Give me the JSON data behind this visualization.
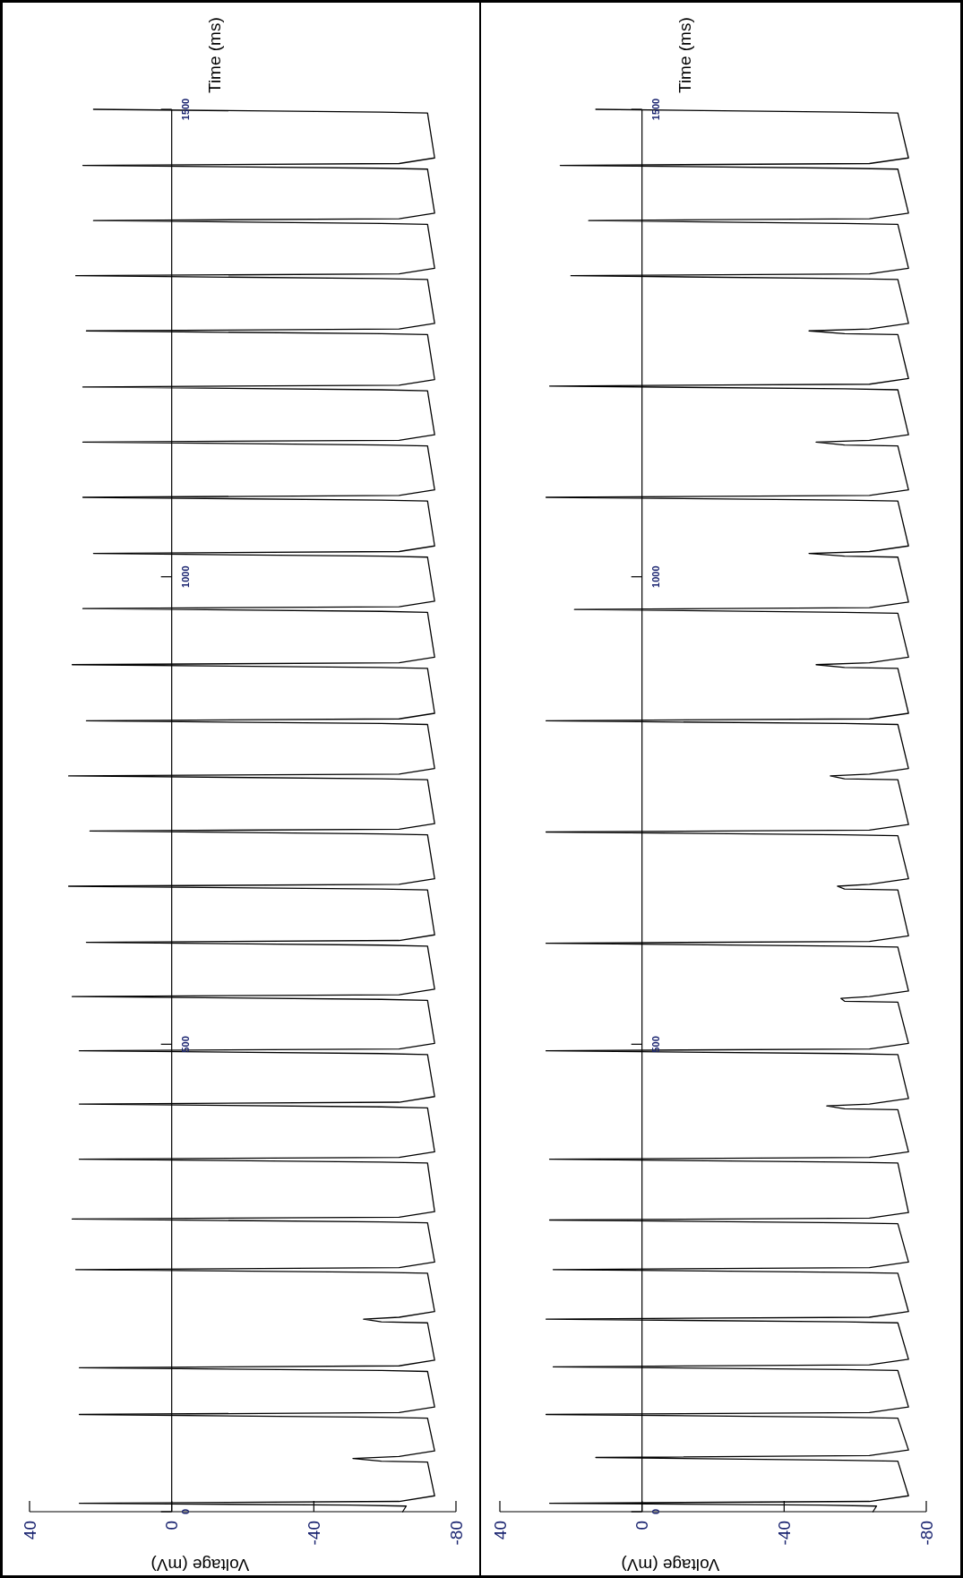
{
  "chart_data": [
    {
      "type": "line",
      "xlabel": "Voltage (mV)",
      "ylabel": "Time (ms)",
      "xlim": [
        40,
        -80
      ],
      "xticks": [
        40,
        0,
        -40,
        -80
      ],
      "ylim": [
        0,
        1500
      ],
      "yticks": [
        0,
        500,
        1000,
        1500
      ],
      "series": [
        {
          "color": "#000000",
          "values": [
            0,
            6,
            7,
            9,
            11,
            17,
            53,
            54,
            57,
            59,
            65,
            100,
            101,
            104,
            106,
            112,
            150,
            151,
            154,
            156,
            162,
            202,
            203,
            206,
            208,
            214,
            255,
            256,
            259,
            261,
            267,
            309,
            310,
            313,
            315,
            321,
            373,
            374,
            377,
            379,
            385,
            432,
            433,
            436,
            438,
            444,
            489,
            490,
            493,
            495,
            501,
            547,
            548,
            551,
            553,
            559,
            605,
            606,
            609,
            611,
            617,
            665,
            666,
            669,
            671,
            677,
            724,
            725,
            728,
            730,
            736,
            783,
            784,
            787,
            789,
            795,
            842,
            843,
            846,
            848,
            854,
            902,
            903,
            906,
            908,
            914,
            962,
            963,
            966,
            968,
            974,
            1021,
            1022,
            1025,
            1027,
            1033,
            1081,
            1082,
            1085,
            1087,
            1093,
            1140,
            1141,
            1144,
            1146,
            1152,
            1199,
            1200,
            1203,
            1205,
            1211,
            1259,
            1260,
            1263,
            1265,
            1271,
            1318,
            1319,
            1322,
            1324,
            1330,
            1377,
            1378,
            1381,
            1383,
            1389,
            1436,
            1437,
            1440,
            1442,
            1448,
            1496,
            1497,
            1500
          ],
          "x": [
            -65,
            -66,
            -50,
            26,
            -64,
            -74,
            -72,
            -59,
            -51,
            -64,
            -74,
            -72,
            -59,
            26,
            -64,
            -74,
            -72,
            -59,
            26,
            -64,
            -74,
            -72,
            -59,
            -54,
            -64,
            -74,
            -72,
            -59,
            27,
            -64,
            -74,
            -72,
            -59,
            28,
            -64,
            -74,
            -72,
            -59,
            26,
            -64,
            -74,
            -72,
            -59,
            26,
            -64,
            -74,
            -72,
            -59,
            26,
            -64,
            -74,
            -72,
            -59,
            28,
            -64,
            -74,
            -72,
            -59,
            24,
            -64,
            -74,
            -72,
            -59,
            29,
            -64,
            -74,
            -72,
            -59,
            23,
            -64,
            -74,
            -72,
            -59,
            29,
            -64,
            -74,
            -72,
            -59,
            24,
            -64,
            -74,
            -72,
            -59,
            28,
            -64,
            -74,
            -72,
            -59,
            25,
            -64,
            -74,
            -72,
            -59,
            22,
            -64,
            -74,
            -72,
            -59,
            25,
            -64,
            -74,
            -72,
            -59,
            25,
            -64,
            -74,
            -72,
            -59,
            25,
            -64,
            -74,
            -72,
            -59,
            24,
            -64,
            -74,
            -72,
            -59,
            27,
            -64,
            -74,
            -72,
            -59,
            22,
            -64,
            -74,
            -72,
            -59,
            25,
            -64,
            -74,
            -72,
            -59,
            22
          ]
        }
      ]
    },
    {
      "type": "line",
      "xlabel": "Voltage (mV)",
      "ylabel": "Time (ms)",
      "xlim": [
        40,
        -80
      ],
      "xticks": [
        40,
        0,
        -40,
        -80
      ],
      "ylim": [
        0,
        1500
      ],
      "yticks": [
        0,
        500,
        1000,
        1500
      ],
      "series": [
        {
          "color": "#000000",
          "values": [
            0,
            6,
            7,
            9,
            11,
            17,
            54,
            55,
            58,
            60,
            66,
            100,
            101,
            104,
            106,
            112,
            151,
            152,
            155,
            157,
            163,
            202,
            203,
            206,
            208,
            214,
            255,
            256,
            259,
            261,
            267,
            308,
            309,
            312,
            314,
            320,
            373,
            374,
            377,
            379,
            385,
            430,
            431,
            434,
            436,
            442,
            489,
            490,
            493,
            495,
            501,
            545,
            546,
            549,
            551,
            557,
            604,
            605,
            608,
            610,
            616,
            665,
            666,
            669,
            671,
            677,
            723,
            724,
            727,
            729,
            735,
            783,
            784,
            787,
            789,
            795,
            842,
            843,
            846,
            848,
            854,
            902,
            903,
            906,
            908,
            914,
            961,
            962,
            965,
            967,
            973,
            1021,
            1022,
            1025,
            1027,
            1033,
            1081,
            1082,
            1085,
            1087,
            1093,
            1140,
            1141,
            1144,
            1146,
            1152,
            1200,
            1201,
            1204,
            1206,
            1212,
            1259,
            1260,
            1263,
            1265,
            1271,
            1318,
            1319,
            1322,
            1324,
            1330,
            1377,
            1378,
            1381,
            1383,
            1389,
            1436,
            1437,
            1440,
            1442,
            1448,
            1496,
            1497,
            1500
          ],
          "x": [
            -65,
            -66,
            -50,
            26,
            -64,
            -75,
            -72,
            -57,
            13,
            -64,
            -75,
            -72,
            -57,
            27,
            -64,
            -75,
            -72,
            -57,
            25,
            -64,
            -75,
            -72,
            -57,
            27,
            -64,
            -75,
            -72,
            -57,
            25,
            -64,
            -75,
            -72,
            -57,
            26,
            -64,
            -75,
            -72,
            -57,
            26,
            -64,
            -75,
            -72,
            -57,
            -52,
            -64,
            -75,
            -72,
            -57,
            27,
            -64,
            -75,
            -72,
            -57,
            -56,
            -64,
            -75,
            -72,
            -57,
            27,
            -64,
            -75,
            -72,
            -57,
            -55,
            -64,
            -75,
            -72,
            -57,
            27,
            -64,
            -75,
            -72,
            -57,
            -53,
            -64,
            -75,
            -72,
            -57,
            27,
            -64,
            -75,
            -72,
            -57,
            -49,
            -64,
            -75,
            -72,
            -57,
            19,
            -64,
            -75,
            -72,
            -57,
            -47,
            -64,
            -75,
            -72,
            -57,
            27,
            -64,
            -75,
            -72,
            -57,
            -49,
            -64,
            -75,
            -72,
            -57,
            26,
            -64,
            -75,
            -72,
            -57,
            -47,
            -64,
            -75,
            -72,
            -57,
            20,
            -64,
            -75,
            -72,
            -57,
            15,
            -64,
            -75,
            -72,
            -57,
            23,
            -64,
            -75,
            -72,
            -57,
            13
          ]
        }
      ]
    }
  ]
}
